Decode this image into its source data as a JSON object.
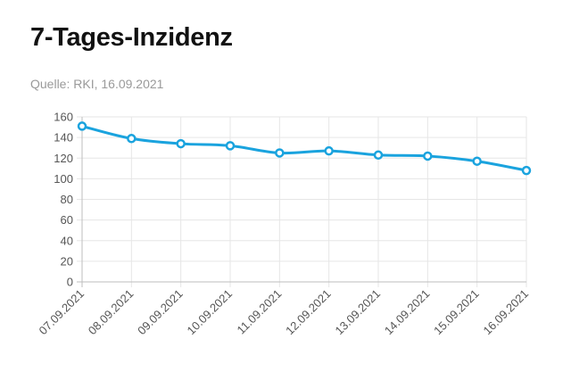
{
  "header": {
    "title": "7-Tages-Inzidenz",
    "source": "Quelle: RKI, 16.09.2021"
  },
  "chart_data": {
    "type": "line",
    "categories": [
      "07.09.2021",
      "08.09.2021",
      "09.09.2021",
      "10.09.2021",
      "11.09.2021",
      "12.09.2021",
      "13.09.2021",
      "14.09.2021",
      "15.09.2021",
      "16.09.2021"
    ],
    "series": [
      {
        "values": [
          151,
          139,
          134,
          132,
          125,
          127,
          123,
          122,
          117,
          108
        ]
      }
    ],
    "ylim": [
      0,
      160
    ],
    "yticks": [
      0,
      20,
      40,
      60,
      80,
      100,
      120,
      140,
      160
    ],
    "grid": true,
    "line_color": "#1aa3de"
  }
}
